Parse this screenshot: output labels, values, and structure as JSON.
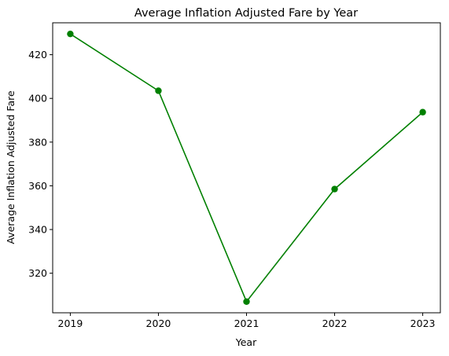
{
  "chart_data": {
    "type": "line",
    "title": "Average Inflation Adjusted Fare by Year",
    "xlabel": "Year",
    "ylabel": "Average Inflation Adjusted Fare",
    "x": [
      2019,
      2020,
      2021,
      2022,
      2023
    ],
    "series": [
      {
        "values": [
          429.5,
          403.5,
          307.0,
          358.5,
          393.7
        ],
        "color": "#008000",
        "marker": "circle"
      }
    ],
    "x_ticks": [
      "2019",
      "2020",
      "2021",
      "2022",
      "2023"
    ],
    "y_ticks": [
      "320",
      "340",
      "360",
      "380",
      "400",
      "420"
    ],
    "ylim": [
      301.9,
      434.6
    ],
    "xlim": [
      2018.8,
      2023.2
    ],
    "grid": false,
    "legend": "none"
  }
}
